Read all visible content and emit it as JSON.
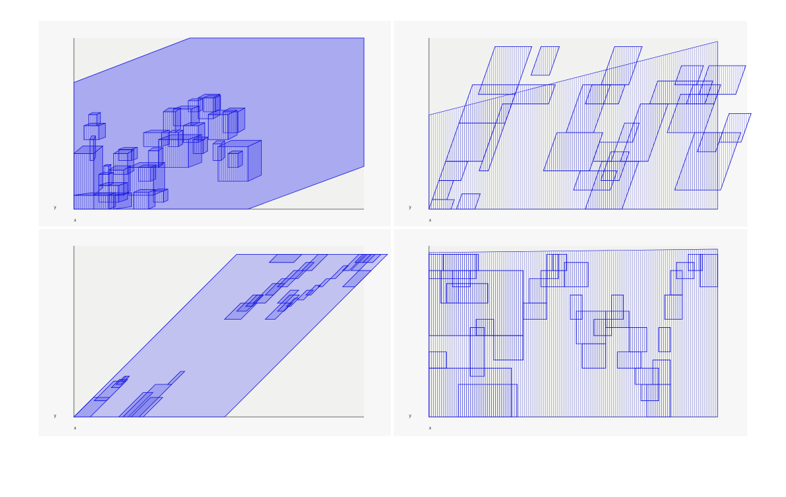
{
  "figure": {
    "accent_color": "#1010e0",
    "fill_color": "#3535ee",
    "plot_bg": "#f1f2ef",
    "panel_bg": "#f7f7f7"
  },
  "chart_data": [
    {
      "type": "treemap-shear",
      "title": "",
      "xlabel": "x",
      "ylabel": "y",
      "view": "oblique-3d",
      "depth": [
        0.4,
        0.2
      ],
      "shear": 0,
      "back_opacity": 0.38,
      "density": 0.62,
      "items": [
        [
          0,
          0,
          40,
          10
        ],
        [
          0,
          10,
          20,
          30
        ],
        [
          20,
          0,
          15,
          10
        ],
        [
          25,
          5,
          20,
          12
        ],
        [
          25,
          17,
          10,
          8
        ],
        [
          30,
          25,
          5,
          6
        ],
        [
          35,
          10,
          15,
          18
        ],
        [
          45,
          35,
          13,
          8
        ],
        [
          40,
          25,
          14,
          15
        ],
        [
          55,
          10,
          25,
          20
        ],
        [
          60,
          0,
          15,
          12
        ],
        [
          65,
          20,
          12,
          10
        ],
        [
          70,
          45,
          18,
          10
        ],
        [
          75,
          30,
          10,
          12
        ],
        [
          80,
          5,
          10,
          8
        ],
        [
          85,
          30,
          30,
          20
        ],
        [
          90,
          55,
          12,
          15
        ],
        [
          95,
          45,
          10,
          10
        ],
        [
          100,
          60,
          18,
          12
        ],
        [
          110,
          48,
          15,
          12
        ],
        [
          115,
          70,
          10,
          8
        ],
        [
          120,
          40,
          10,
          10
        ],
        [
          125,
          65,
          15,
          15
        ],
        [
          130,
          70,
          12,
          10
        ],
        [
          135,
          50,
          20,
          18
        ],
        [
          140,
          35,
          8,
          12
        ],
        [
          145,
          20,
          30,
          25
        ],
        [
          150,
          55,
          15,
          15
        ],
        [
          155,
          30,
          10,
          10
        ],
        [
          10,
          50,
          15,
          10
        ],
        [
          15,
          60,
          8,
          8
        ],
        [
          16,
          35,
          4,
          15
        ]
      ]
    },
    {
      "type": "treemap-shear",
      "title": "",
      "xlabel": "x",
      "ylabel": "y",
      "view": "flat",
      "shear": 0.35,
      "back_opacity": 0,
      "density": 0.72,
      "items": [
        [
          0,
          0,
          12,
          5
        ],
        [
          0,
          5,
          8,
          10
        ],
        [
          0,
          15,
          12,
          10
        ],
        [
          0,
          25,
          20,
          20
        ],
        [
          0,
          45,
          25,
          20
        ],
        [
          5,
          60,
          20,
          25
        ],
        [
          15,
          0,
          10,
          8
        ],
        [
          20,
          20,
          5,
          35
        ],
        [
          25,
          55,
          20,
          10
        ],
        [
          30,
          70,
          10,
          15
        ],
        [
          55,
          20,
          25,
          20
        ],
        [
          60,
          40,
          15,
          25
        ],
        [
          65,
          55,
          18,
          10
        ],
        [
          70,
          65,
          15,
          20
        ],
        [
          75,
          10,
          20,
          10
        ],
        [
          80,
          25,
          10,
          10
        ],
        [
          85,
          0,
          20,
          25
        ],
        [
          88,
          15,
          10,
          15
        ],
        [
          90,
          35,
          8,
          10
        ],
        [
          95,
          25,
          15,
          30
        ],
        [
          100,
          55,
          30,
          12
        ],
        [
          110,
          65,
          12,
          10
        ],
        [
          115,
          40,
          20,
          20
        ],
        [
          120,
          55,
          15,
          10
        ],
        [
          125,
          60,
          20,
          15
        ],
        [
          130,
          10,
          25,
          30
        ],
        [
          135,
          30,
          10,
          10
        ],
        [
          145,
          35,
          12,
          15
        ]
      ]
    },
    {
      "type": "treemap-shear",
      "title": "",
      "xlabel": "x",
      "ylabel": "y",
      "view": "flat",
      "shear": 1.0,
      "back_opacity": 0.25,
      "density": 0,
      "items": [
        [
          0,
          0,
          20,
          12
        ],
        [
          5,
          10,
          15,
          12
        ],
        [
          10,
          18,
          10,
          5
        ],
        [
          12,
          20,
          6,
          5
        ],
        [
          14,
          22,
          4,
          3
        ],
        [
          55,
          0,
          12,
          15
        ],
        [
          60,
          0,
          20,
          20
        ],
        [
          70,
          0,
          15,
          12
        ],
        [
          75,
          20,
          5,
          8
        ],
        [
          65,
          60,
          20,
          10
        ],
        [
          70,
          65,
          12,
          10
        ],
        [
          75,
          68,
          8,
          7
        ],
        [
          80,
          70,
          15,
          12
        ],
        [
          85,
          75,
          10,
          10
        ],
        [
          90,
          80,
          12,
          10
        ],
        [
          95,
          85,
          10,
          10
        ],
        [
          100,
          90,
          12,
          10
        ],
        [
          110,
          70,
          10,
          8
        ],
        [
          115,
          60,
          12,
          15
        ],
        [
          120,
          65,
          8,
          5
        ],
        [
          125,
          68,
          5,
          5
        ],
        [
          130,
          72,
          8,
          6
        ],
        [
          135,
          75,
          6,
          6
        ],
        [
          140,
          80,
          5,
          5
        ],
        [
          145,
          85,
          6,
          8
        ],
        [
          150,
          90,
          8,
          10
        ],
        [
          155,
          95,
          10,
          5
        ],
        [
          160,
          90,
          10,
          10
        ],
        [
          165,
          95,
          12,
          5
        ],
        [
          170,
          80,
          15,
          10
        ],
        [
          50,
          95,
          30,
          5
        ]
      ]
    },
    {
      "type": "treemap-shear",
      "title": "",
      "xlabel": "x",
      "ylabel": "y",
      "view": "flat",
      "shear": 0,
      "back_opacity": 0,
      "density": 1,
      "items": [
        [
          0,
          0,
          70,
          30
        ],
        [
          0,
          30,
          15,
          10
        ],
        [
          0,
          50,
          80,
          40
        ],
        [
          10,
          70,
          15,
          20
        ],
        [
          0,
          85,
          40,
          15
        ],
        [
          12,
          90,
          30,
          10
        ],
        [
          15,
          70,
          35,
          12
        ],
        [
          20,
          80,
          15,
          10
        ],
        [
          25,
          0,
          50,
          20
        ],
        [
          35,
          25,
          12,
          30
        ],
        [
          40,
          50,
          15,
          10
        ],
        [
          55,
          35,
          25,
          15
        ],
        [
          80,
          60,
          20,
          10
        ],
        [
          85,
          70,
          15,
          15
        ],
        [
          95,
          80,
          20,
          10
        ],
        [
          100,
          85,
          10,
          15
        ],
        [
          105,
          90,
          12,
          10
        ],
        [
          115,
          80,
          20,
          15
        ],
        [
          120,
          60,
          10,
          15
        ],
        [
          125,
          45,
          25,
          20
        ],
        [
          130,
          30,
          20,
          15
        ],
        [
          140,
          50,
          15,
          10
        ],
        [
          150,
          55,
          20,
          10
        ],
        [
          155,
          60,
          10,
          15
        ],
        [
          160,
          30,
          20,
          10
        ],
        [
          170,
          40,
          15,
          15
        ],
        [
          175,
          20,
          20,
          10
        ],
        [
          180,
          10,
          15,
          10
        ],
        [
          185,
          0,
          20,
          20
        ],
        [
          190,
          20,
          15,
          15
        ],
        [
          195,
          40,
          10,
          15
        ],
        [
          200,
          60,
          15,
          15
        ],
        [
          205,
          75,
          10,
          15
        ],
        [
          210,
          85,
          15,
          10
        ],
        [
          220,
          90,
          12,
          10
        ],
        [
          230,
          80,
          15,
          20
        ]
      ]
    }
  ]
}
